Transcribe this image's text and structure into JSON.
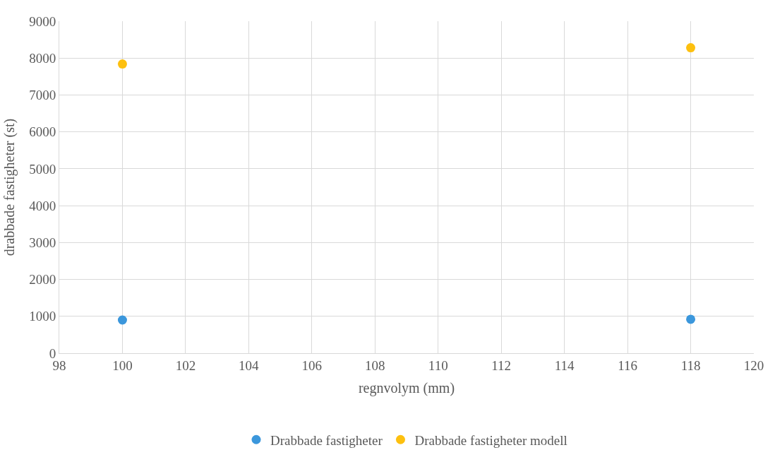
{
  "chart_data": {
    "type": "scatter",
    "xlabel": "regnvolym (mm)",
    "ylabel": "drabbade fastigheter (st)",
    "x": [
      100,
      118
    ],
    "series": [
      {
        "name": "Drabbade fastigheter",
        "color": "#3b97dc",
        "values": [
          900,
          920
        ]
      },
      {
        "name": "Drabbade fastigheter modell",
        "color": "#fdc00f",
        "values": [
          7840,
          8280
        ]
      }
    ],
    "xlim": [
      98,
      120
    ],
    "xticks": [
      98,
      100,
      102,
      104,
      106,
      108,
      110,
      112,
      114,
      116,
      118,
      120
    ],
    "ylim": [
      0,
      9000
    ],
    "yticks": [
      0,
      1000,
      2000,
      3000,
      4000,
      5000,
      6000,
      7000,
      8000,
      9000
    ],
    "grid": true,
    "legend": "bottom",
    "marker": "circle"
  }
}
